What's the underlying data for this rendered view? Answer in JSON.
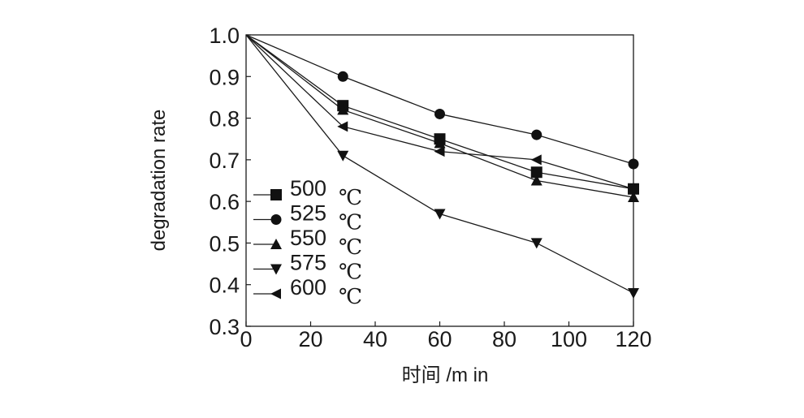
{
  "chart_data": {
    "type": "line",
    "xlabel": "时间 /m in",
    "ylabel": "degradation rate",
    "xlim": [
      0,
      120
    ],
    "ylim": [
      0.3,
      1.0
    ],
    "x_ticks": [
      "0",
      "20",
      "40",
      "60",
      "80",
      "100",
      "120"
    ],
    "y_ticks": [
      "1.0",
      "0.9",
      "0.8",
      "0.7",
      "0.6",
      "0.5",
      "0.4",
      "0.3"
    ],
    "grid": false,
    "legend_position": "left",
    "x": [
      0,
      30,
      60,
      90,
      120
    ],
    "series": [
      {
        "name": "500",
        "unit": "℃",
        "marker": "square",
        "values": [
          1.0,
          0.83,
          0.75,
          0.67,
          0.63
        ]
      },
      {
        "name": "525",
        "unit": "℃",
        "marker": "circle",
        "values": [
          1.0,
          0.9,
          0.81,
          0.76,
          0.69
        ]
      },
      {
        "name": "550",
        "unit": "℃",
        "marker": "triangle-up",
        "values": [
          1.0,
          0.82,
          0.74,
          0.65,
          0.61
        ]
      },
      {
        "name": "575",
        "unit": "℃",
        "marker": "triangle-down",
        "values": [
          1.0,
          0.71,
          0.57,
          0.5,
          0.38
        ]
      },
      {
        "name": "600",
        "unit": "℃",
        "marker": "triangle-left",
        "values": [
          1.0,
          0.78,
          0.72,
          0.7,
          0.63
        ]
      }
    ]
  }
}
